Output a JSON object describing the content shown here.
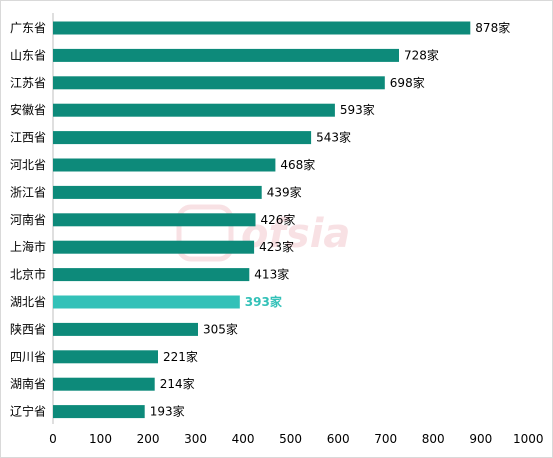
{
  "chart_data": {
    "type": "bar",
    "orientation": "horizontal",
    "categories": [
      "广东省",
      "山东省",
      "江苏省",
      "安徽省",
      "江西省",
      "河北省",
      "浙江省",
      "河南省",
      "上海市",
      "北京市",
      "湖北省",
      "陕西省",
      "四川省",
      "湖南省",
      "辽宁省"
    ],
    "values": [
      878,
      728,
      698,
      593,
      543,
      468,
      439,
      426,
      423,
      413,
      393,
      305,
      221,
      214,
      193
    ],
    "value_labels": [
      "878家",
      "728家",
      "698家",
      "593家",
      "543家",
      "468家",
      "439家",
      "426家",
      "423家",
      "413家",
      "393家",
      "305家",
      "221家",
      "214家",
      "193家"
    ],
    "highlight_category": "湖北省",
    "xlim": [
      0,
      1000
    ],
    "xticks": [
      0,
      100,
      200,
      300,
      400,
      500,
      600,
      700,
      800,
      900,
      1000
    ],
    "grid": false,
    "colors": {
      "bar": "#0d8a7a",
      "highlight": "#33c1b8",
      "axis": "#bfbfbf"
    }
  },
  "watermark": {
    "text": "ofsia"
  }
}
